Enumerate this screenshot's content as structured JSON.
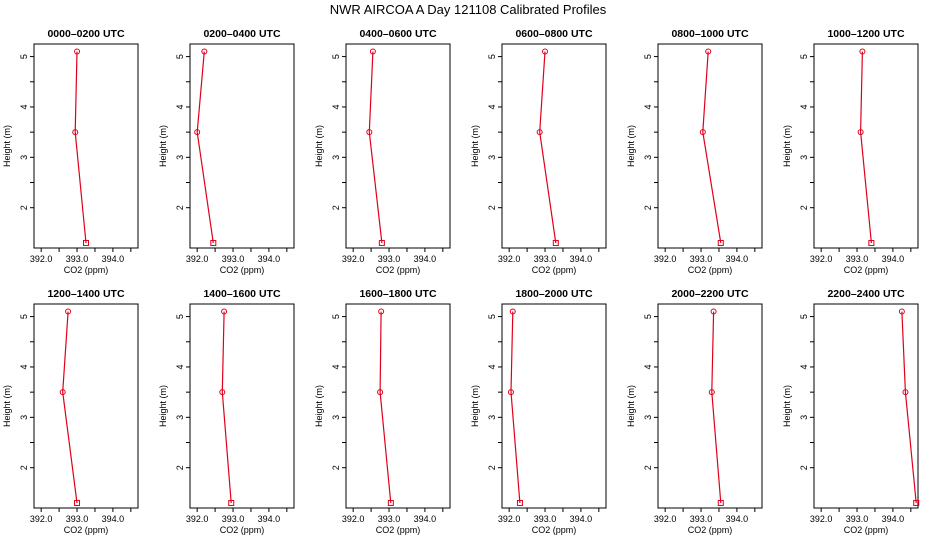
{
  "figure": {
    "title": "NWR AIRCOA A  Day 121108  Calibrated Profiles"
  },
  "chart_data": [
    {
      "type": "line",
      "title": "0000–0200 UTC",
      "xlabel": "CO2 (ppm)",
      "ylabel": "Height (m)",
      "xlim": [
        391.8,
        394.7
      ],
      "ylim": [
        1.2,
        5.25
      ],
      "xticks": [
        "392.0",
        "393.0",
        "394.0"
      ],
      "yticks": [
        "2",
        "3",
        "4",
        "5"
      ],
      "series": [
        {
          "x": [
            393.25,
            392.95,
            393.0
          ],
          "y": [
            1.3,
            3.5,
            5.1
          ],
          "color": "#e0001b"
        }
      ]
    },
    {
      "type": "line",
      "title": "0200–0400 UTC",
      "xlabel": "CO2 (ppm)",
      "ylabel": "Height (m)",
      "xlim": [
        391.8,
        394.7
      ],
      "ylim": [
        1.2,
        5.25
      ],
      "xticks": [
        "392.0",
        "393.0",
        "394.0"
      ],
      "yticks": [
        "2",
        "3",
        "4",
        "5"
      ],
      "series": [
        {
          "x": [
            392.45,
            392.0,
            392.2
          ],
          "y": [
            1.3,
            3.5,
            5.1
          ],
          "color": "#e0001b"
        }
      ]
    },
    {
      "type": "line",
      "title": "0400–0600 UTC",
      "xlabel": "CO2 (ppm)",
      "ylabel": "Height (m)",
      "xlim": [
        391.8,
        394.7
      ],
      "ylim": [
        1.2,
        5.25
      ],
      "xticks": [
        "392.0",
        "393.0",
        "394.0"
      ],
      "yticks": [
        "2",
        "3",
        "4",
        "5"
      ],
      "series": [
        {
          "x": [
            392.8,
            392.45,
            392.55
          ],
          "y": [
            1.3,
            3.5,
            5.1
          ],
          "color": "#e0001b"
        }
      ]
    },
    {
      "type": "line",
      "title": "0600–0800 UTC",
      "xlabel": "CO2 (ppm)",
      "ylabel": "Height (m)",
      "xlim": [
        391.8,
        394.7
      ],
      "ylim": [
        1.2,
        5.25
      ],
      "xticks": [
        "392.0",
        "393.0",
        "394.0"
      ],
      "yticks": [
        "2",
        "3",
        "4",
        "5"
      ],
      "series": [
        {
          "x": [
            393.3,
            392.85,
            393.0
          ],
          "y": [
            1.3,
            3.5,
            5.1
          ],
          "color": "#e0001b"
        }
      ]
    },
    {
      "type": "line",
      "title": "0800–1000 UTC",
      "xlabel": "CO2 (ppm)",
      "ylabel": "Height (m)",
      "xlim": [
        391.8,
        394.7
      ],
      "ylim": [
        1.2,
        5.25
      ],
      "xticks": [
        "392.0",
        "393.0",
        "394.0"
      ],
      "yticks": [
        "2",
        "3",
        "4",
        "5"
      ],
      "series": [
        {
          "x": [
            393.55,
            393.05,
            393.2
          ],
          "y": [
            1.3,
            3.5,
            5.1
          ],
          "color": "#e0001b"
        }
      ]
    },
    {
      "type": "line",
      "title": "1000–1200 UTC",
      "xlabel": "CO2 (ppm)",
      "ylabel": "Height (m)",
      "xlim": [
        391.8,
        394.7
      ],
      "ylim": [
        1.2,
        5.25
      ],
      "xticks": [
        "392.0",
        "393.0",
        "394.0"
      ],
      "yticks": [
        "2",
        "3",
        "4",
        "5"
      ],
      "series": [
        {
          "x": [
            393.4,
            393.1,
            393.15
          ],
          "y": [
            1.3,
            3.5,
            5.1
          ],
          "color": "#e0001b"
        }
      ]
    },
    {
      "type": "line",
      "title": "1200–1400 UTC",
      "xlabel": "CO2 (ppm)",
      "ylabel": "Height (m)",
      "xlim": [
        391.8,
        394.7
      ],
      "ylim": [
        1.2,
        5.25
      ],
      "xticks": [
        "392.0",
        "393.0",
        "394.0"
      ],
      "yticks": [
        "2",
        "3",
        "4",
        "5"
      ],
      "series": [
        {
          "x": [
            393.0,
            392.6,
            392.75
          ],
          "y": [
            1.3,
            3.5,
            5.1
          ],
          "color": "#e0001b"
        }
      ]
    },
    {
      "type": "line",
      "title": "1400–1600 UTC",
      "xlabel": "CO2 (ppm)",
      "ylabel": "Height (m)",
      "xlim": [
        391.8,
        394.7
      ],
      "ylim": [
        1.2,
        5.25
      ],
      "xticks": [
        "392.0",
        "393.0",
        "394.0"
      ],
      "yticks": [
        "2",
        "3",
        "4",
        "5"
      ],
      "series": [
        {
          "x": [
            392.95,
            392.7,
            392.75
          ],
          "y": [
            1.3,
            3.5,
            5.1
          ],
          "color": "#e0001b"
        }
      ]
    },
    {
      "type": "line",
      "title": "1600–1800 UTC",
      "xlabel": "CO2 (ppm)",
      "ylabel": "Height (m)",
      "xlim": [
        391.8,
        394.7
      ],
      "ylim": [
        1.2,
        5.25
      ],
      "xticks": [
        "392.0",
        "393.0",
        "394.0"
      ],
      "yticks": [
        "2",
        "3",
        "4",
        "5"
      ],
      "series": [
        {
          "x": [
            393.05,
            392.75,
            392.78
          ],
          "y": [
            1.3,
            3.5,
            5.1
          ],
          "color": "#e0001b"
        }
      ]
    },
    {
      "type": "line",
      "title": "1800–2000 UTC",
      "xlabel": "CO2 (ppm)",
      "ylabel": "Height (m)",
      "xlim": [
        391.8,
        394.7
      ],
      "ylim": [
        1.2,
        5.25
      ],
      "xticks": [
        "392.0",
        "393.0",
        "394.0"
      ],
      "yticks": [
        "2",
        "3",
        "4",
        "5"
      ],
      "series": [
        {
          "x": [
            392.3,
            392.05,
            392.1
          ],
          "y": [
            1.3,
            3.5,
            5.1
          ],
          "color": "#e0001b"
        }
      ]
    },
    {
      "type": "line",
      "title": "2000–2200 UTC",
      "xlabel": "CO2 (ppm)",
      "ylabel": "Height (m)",
      "xlim": [
        391.8,
        394.7
      ],
      "ylim": [
        1.2,
        5.25
      ],
      "xticks": [
        "392.0",
        "393.0",
        "394.0"
      ],
      "yticks": [
        "2",
        "3",
        "4",
        "5"
      ],
      "series": [
        {
          "x": [
            393.55,
            393.3,
            393.35
          ],
          "y": [
            1.3,
            3.5,
            5.1
          ],
          "color": "#e0001b"
        }
      ]
    },
    {
      "type": "line",
      "title": "2200–2400 UTC",
      "xlabel": "CO2 (ppm)",
      "ylabel": "Height (m)",
      "xlim": [
        391.8,
        394.7
      ],
      "ylim": [
        1.2,
        5.25
      ],
      "xticks": [
        "392.0",
        "393.0",
        "394.0"
      ],
      "yticks": [
        "2",
        "3",
        "4",
        "5"
      ],
      "series": [
        {
          "x": [
            394.65,
            394.35,
            394.25
          ],
          "y": [
            1.3,
            3.5,
            5.1
          ],
          "color": "#e0001b"
        }
      ]
    }
  ]
}
